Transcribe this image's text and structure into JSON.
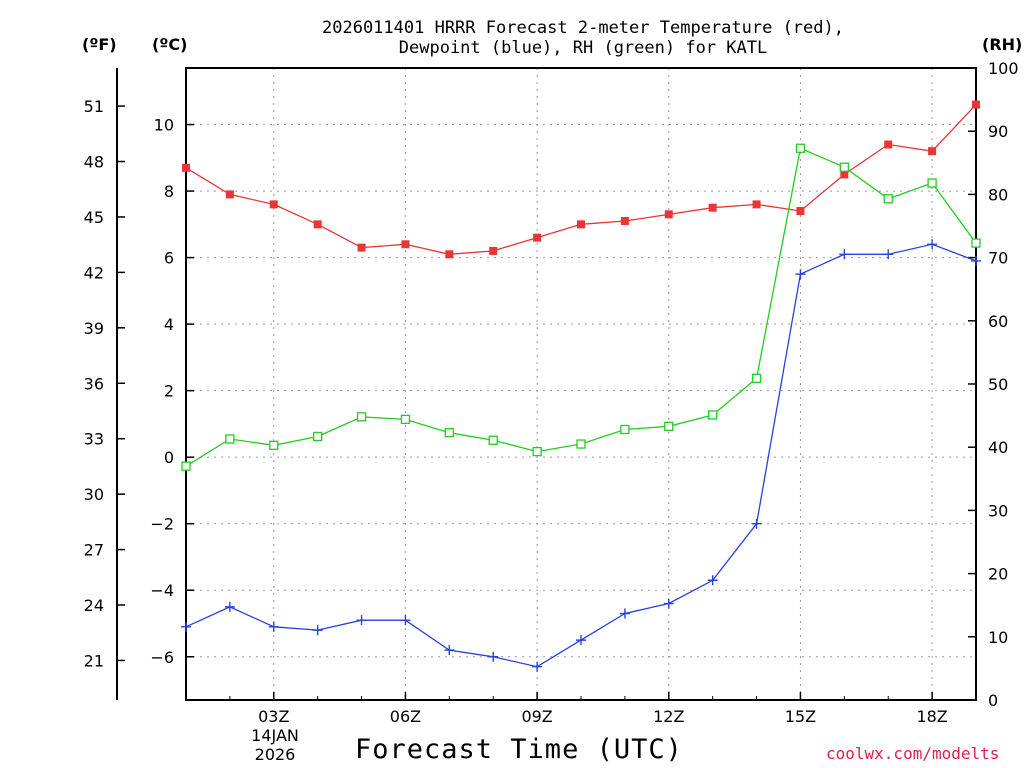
{
  "chart_data": {
    "type": "line",
    "title_line1": "2026011401 HRRR Forecast 2-meter Temperature (red),",
    "title_line2": "Dewpoint (blue), RH (green) for KATL",
    "xlabel": "Forecast Time (UTC)",
    "credit": "coolwx.com/modelts",
    "units": {
      "fahrenheit": "(ºF)",
      "celsius": "(ºC)",
      "rh": "(RH)"
    },
    "date_label": {
      "day": "14JAN",
      "year": "2026"
    },
    "x_hours": [
      1,
      2,
      3,
      4,
      5,
      6,
      7,
      8,
      9,
      10,
      11,
      12,
      13,
      14,
      15,
      16,
      17,
      18,
      19
    ],
    "xlim": [
      1,
      19
    ],
    "x_ticks": [
      {
        "hour": 3,
        "label": "03Z"
      },
      {
        "hour": 6,
        "label": "06Z"
      },
      {
        "hour": 9,
        "label": "09Z"
      },
      {
        "hour": 12,
        "label": "12Z"
      },
      {
        "hour": 15,
        "label": "15Z"
      },
      {
        "hour": 18,
        "label": "18Z"
      }
    ],
    "y_celsius": {
      "lim": [
        -7.3,
        11.7
      ],
      "ticks": [
        -6,
        -4,
        -2,
        0,
        2,
        4,
        6,
        8,
        10
      ]
    },
    "y_fahrenheit": {
      "ticks": [
        21,
        24,
        27,
        30,
        33,
        36,
        39,
        42,
        45,
        48,
        51
      ]
    },
    "y_rh": {
      "lim": [
        0,
        100
      ],
      "ticks": [
        0,
        10,
        20,
        30,
        40,
        50,
        60,
        70,
        80,
        90,
        100
      ]
    },
    "series": [
      {
        "name": "Temperature",
        "unit": "C",
        "color": "#e83535",
        "marker": "filled-square",
        "values": [
          8.7,
          7.9,
          7.6,
          7.0,
          6.3,
          6.4,
          6.1,
          6.2,
          6.6,
          7.0,
          7.1,
          7.3,
          7.5,
          7.6,
          7.4,
          8.5,
          9.4,
          9.2,
          10.6
        ]
      },
      {
        "name": "Dewpoint",
        "unit": "C",
        "color": "#2841e0",
        "marker": "plus",
        "values": [
          -5.1,
          -4.5,
          -5.1,
          -5.2,
          -4.9,
          -4.9,
          -5.8,
          -6.0,
          -6.3,
          -5.5,
          -4.7,
          -4.4,
          -3.7,
          -2.0,
          5.5,
          6.1,
          6.1,
          6.4,
          5.9
        ]
      },
      {
        "name": "RH",
        "unit": "%",
        "color": "#22cc22",
        "marker": "open-square",
        "values": [
          37,
          41.3,
          40.3,
          41.7,
          44.8,
          44.4,
          42.3,
          41.1,
          39.3,
          40.5,
          42.8,
          43.3,
          45.1,
          50.9,
          87.3,
          84.3,
          79.3,
          81.8,
          72.3
        ]
      }
    ]
  }
}
